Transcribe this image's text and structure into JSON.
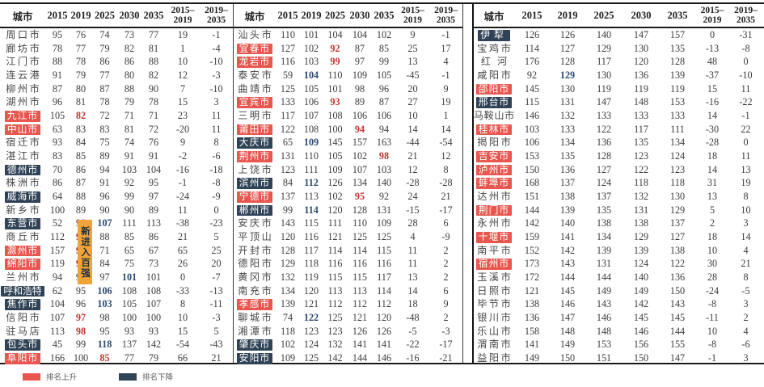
{
  "columns": {
    "city": "城市",
    "years": [
      "2015",
      "2019",
      "2025",
      "2030",
      "2035"
    ],
    "delta1": [
      "2015–",
      "2019"
    ],
    "delta2": [
      "2019–",
      "2035"
    ]
  },
  "legend": {
    "up_label": "排名上升",
    "down_label": "排名下降"
  },
  "annotation": {
    "label": "新进入百强"
  },
  "colors": {
    "up_bg": "#e8564e",
    "down_bg": "#2f4256",
    "up_text": "#c23730",
    "down_text": "#2c4b70",
    "annotation_bg": "#f0a437",
    "border": "#1b1b1b",
    "body_text": "#3c3c3c"
  },
  "tables": [
    {
      "rows": [
        {
          "city": "周口市",
          "hl": null,
          "v": [
            "95",
            "76",
            "74",
            "73",
            "77",
            "19",
            "-1"
          ]
        },
        {
          "city": "廊坊市",
          "hl": null,
          "v": [
            "78",
            "77",
            "79",
            "82",
            "81",
            "1",
            "-4"
          ]
        },
        {
          "city": "江门市",
          "hl": null,
          "v": [
            "88",
            "78",
            "86",
            "86",
            "88",
            "10",
            "-10"
          ]
        },
        {
          "city": "连云港",
          "hl": null,
          "v": [
            "91",
            "79",
            "77",
            "80",
            "82",
            "12",
            "-3"
          ]
        },
        {
          "city": "柳州市",
          "hl": null,
          "v": [
            "87",
            "80",
            "87",
            "88",
            "90",
            "7",
            "-10"
          ]
        },
        {
          "city": "湖州市",
          "hl": null,
          "v": [
            "96",
            "81",
            "78",
            "79",
            "78",
            "15",
            "3"
          ]
        },
        {
          "city": "九江市",
          "hl": "up",
          "v": [
            "105",
            "82",
            "72",
            "71",
            "71",
            "23",
            "11"
          ],
          "m": {
            "1": "up"
          }
        },
        {
          "city": "中山市",
          "hl": "up",
          "v": [
            "63",
            "83",
            "83",
            "81",
            "72",
            "-20",
            "11"
          ]
        },
        {
          "city": "宿迁市",
          "hl": null,
          "v": [
            "93",
            "84",
            "75",
            "74",
            "76",
            "9",
            "8"
          ]
        },
        {
          "city": "湛江市",
          "hl": null,
          "v": [
            "83",
            "85",
            "89",
            "91",
            "91",
            "-2",
            "-6"
          ]
        },
        {
          "city": "德州市",
          "hl": "down",
          "v": [
            "70",
            "86",
            "94",
            "103",
            "104",
            "-16",
            "-18"
          ]
        },
        {
          "city": "株洲市",
          "hl": null,
          "v": [
            "86",
            "87",
            "91",
            "92",
            "95",
            "-1",
            "-8"
          ]
        },
        {
          "city": "威海市",
          "hl": "down",
          "v": [
            "64",
            "88",
            "96",
            "99",
            "97",
            "-24",
            "-9"
          ]
        },
        {
          "city": "新乡市",
          "hl": null,
          "v": [
            "100",
            "89",
            "90",
            "90",
            "89",
            "11",
            "0"
          ]
        },
        {
          "city": "东营市",
          "hl": "down",
          "v": [
            "52",
            "90",
            "107",
            "111",
            "113",
            "-38",
            "-23"
          ],
          "m": {
            "2": "down"
          }
        },
        {
          "city": "商丘市",
          "hl": null,
          "v": [
            "112",
            "91",
            "88",
            "85",
            "86",
            "21",
            "5"
          ],
          "m": {
            "1": "up"
          }
        },
        {
          "city": "滁州市",
          "hl": "up",
          "v": [
            "157",
            "92",
            "71",
            "65",
            "67",
            "65",
            "25"
          ],
          "m": {
            "1": "up"
          }
        },
        {
          "city": "绵阳市",
          "hl": "up",
          "v": [
            "119",
            "93",
            "84",
            "75",
            "73",
            "26",
            "20"
          ],
          "m": {
            "1": "up"
          }
        },
        {
          "city": "兰州市",
          "hl": null,
          "v": [
            "94",
            "94",
            "97",
            "101",
            "101",
            "0",
            "-7"
          ],
          "m": {
            "3": "down"
          }
        },
        {
          "city": "呼和浩特",
          "hl": "down",
          "v": [
            "62",
            "95",
            "106",
            "108",
            "108",
            "-33",
            "-13"
          ],
          "m": {
            "2": "down"
          }
        },
        {
          "city": "焦作市",
          "hl": "down",
          "v": [
            "104",
            "96",
            "103",
            "105",
            "107",
            "8",
            "-11"
          ],
          "m": {
            "2": "down"
          }
        },
        {
          "city": "信阳市",
          "hl": null,
          "v": [
            "107",
            "97",
            "98",
            "100",
            "100",
            "10",
            "-3"
          ],
          "m": {
            "1": "up"
          }
        },
        {
          "city": "驻马店",
          "hl": null,
          "v": [
            "113",
            "98",
            "95",
            "93",
            "93",
            "15",
            "5"
          ],
          "m": {
            "1": "up"
          }
        },
        {
          "city": "包头市",
          "hl": "down",
          "v": [
            "45",
            "99",
            "118",
            "137",
            "142",
            "-54",
            "-43"
          ],
          "m": {
            "2": "down"
          }
        },
        {
          "city": "阜阳市",
          "hl": "up",
          "v": [
            "166",
            "100",
            "85",
            "77",
            "79",
            "66",
            "21"
          ],
          "m": {
            "2": "up"
          }
        }
      ]
    },
    {
      "rows": [
        {
          "city": "汕头市",
          "hl": null,
          "v": [
            "110",
            "101",
            "104",
            "104",
            "102",
            "9",
            "-1"
          ]
        },
        {
          "city": "宜春市",
          "hl": "up",
          "v": [
            "127",
            "102",
            "92",
            "87",
            "85",
            "25",
            "17"
          ],
          "m": {
            "2": "up"
          }
        },
        {
          "city": "龙岩市",
          "hl": "up",
          "v": [
            "116",
            "103",
            "99",
            "97",
            "99",
            "13",
            "4"
          ],
          "m": {
            "2": "up"
          }
        },
        {
          "city": "泰安市",
          "hl": null,
          "v": [
            "59",
            "104",
            "110",
            "109",
            "105",
            "-45",
            "-1"
          ],
          "m": {
            "1": "down"
          }
        },
        {
          "city": "曲靖市",
          "hl": null,
          "v": [
            "125",
            "105",
            "101",
            "98",
            "96",
            "20",
            "9"
          ]
        },
        {
          "city": "宜宾市",
          "hl": "up",
          "v": [
            "133",
            "106",
            "93",
            "89",
            "87",
            "27",
            "19"
          ],
          "m": {
            "2": "up"
          }
        },
        {
          "city": "三明市",
          "hl": null,
          "v": [
            "117",
            "107",
            "108",
            "106",
            "106",
            "10",
            "1"
          ]
        },
        {
          "city": "莆田市",
          "hl": "up",
          "v": [
            "122",
            "108",
            "100",
            "94",
            "94",
            "14",
            "14"
          ],
          "m": {
            "3": "up"
          }
        },
        {
          "city": "大庆市",
          "hl": "down",
          "v": [
            "65",
            "109",
            "145",
            "157",
            "163",
            "-44",
            "-54"
          ],
          "m": {
            "1": "down"
          }
        },
        {
          "city": "荆州市",
          "hl": "up",
          "v": [
            "131",
            "110",
            "105",
            "102",
            "98",
            "21",
            "12"
          ],
          "m": {
            "4": "up"
          }
        },
        {
          "city": "上饶市",
          "hl": null,
          "v": [
            "123",
            "111",
            "109",
            "107",
            "103",
            "12",
            "8"
          ]
        },
        {
          "city": "滨州市",
          "hl": "down",
          "v": [
            "84",
            "112",
            "126",
            "134",
            "140",
            "-28",
            "-28"
          ],
          "m": {
            "1": "down"
          }
        },
        {
          "city": "宁德市",
          "hl": "up",
          "v": [
            "137",
            "113",
            "102",
            "95",
            "92",
            "24",
            "21"
          ],
          "m": {
            "3": "up"
          }
        },
        {
          "city": "郴州市",
          "hl": "down",
          "v": [
            "99",
            "114",
            "120",
            "128",
            "131",
            "-15",
            "-17"
          ],
          "m": {
            "1": "down"
          }
        },
        {
          "city": "安庆市",
          "hl": null,
          "v": [
            "143",
            "115",
            "111",
            "110",
            "109",
            "28",
            "6"
          ]
        },
        {
          "city": "平顶山",
          "hl": null,
          "v": [
            "120",
            "116",
            "121",
            "125",
            "125",
            "4",
            "-9"
          ]
        },
        {
          "city": "开封市",
          "hl": null,
          "v": [
            "128",
            "117",
            "114",
            "114",
            "115",
            "11",
            "2"
          ]
        },
        {
          "city": "德阳市",
          "hl": null,
          "v": [
            "129",
            "118",
            "116",
            "116",
            "116",
            "11",
            "2"
          ]
        },
        {
          "city": "黄冈市",
          "hl": null,
          "v": [
            "132",
            "119",
            "115",
            "115",
            "117",
            "13",
            "2"
          ]
        },
        {
          "city": "南充市",
          "hl": null,
          "v": [
            "134",
            "120",
            "113",
            "113",
            "114",
            "14",
            "6"
          ]
        },
        {
          "city": "孝感市",
          "hl": "up",
          "v": [
            "139",
            "121",
            "112",
            "112",
            "112",
            "18",
            "9"
          ]
        },
        {
          "city": "聊城市",
          "hl": null,
          "v": [
            "74",
            "122",
            "125",
            "121",
            "120",
            "-48",
            "2"
          ],
          "m": {
            "1": "down"
          }
        },
        {
          "city": "湘潭市",
          "hl": null,
          "v": [
            "118",
            "123",
            "123",
            "126",
            "126",
            "-5",
            "-3"
          ]
        },
        {
          "city": "肇庆市",
          "hl": "down",
          "v": [
            "102",
            "124",
            "132",
            "141",
            "141",
            "-22",
            "-17"
          ]
        },
        {
          "city": "安阳市",
          "hl": "down",
          "v": [
            "109",
            "125",
            "142",
            "144",
            "146",
            "-16",
            "-21"
          ]
        }
      ]
    },
    {
      "rows": [
        {
          "city": "伊犁",
          "hl": "down",
          "v": [
            "126",
            "126",
            "140",
            "147",
            "157",
            "0",
            "-31"
          ]
        },
        {
          "city": "宝鸡市",
          "hl": null,
          "v": [
            "114",
            "127",
            "129",
            "130",
            "135",
            "-13",
            "-8"
          ]
        },
        {
          "city": "红河",
          "hl": null,
          "v": [
            "176",
            "128",
            "117",
            "120",
            "128",
            "48",
            "0"
          ]
        },
        {
          "city": "咸阳市",
          "hl": null,
          "v": [
            "92",
            "129",
            "130",
            "136",
            "139",
            "-37",
            "-10"
          ],
          "m": {
            "1": "down"
          }
        },
        {
          "city": "邵阳市",
          "hl": "up",
          "v": [
            "145",
            "130",
            "119",
            "119",
            "119",
            "15",
            "11"
          ]
        },
        {
          "city": "邢台市",
          "hl": "down",
          "v": [
            "115",
            "131",
            "147",
            "148",
            "153",
            "-16",
            "-22"
          ]
        },
        {
          "city": "马鞍山市",
          "hl": null,
          "v": [
            "146",
            "132",
            "133",
            "133",
            "133",
            "14",
            "-1"
          ]
        },
        {
          "city": "桂林市",
          "hl": "up",
          "v": [
            "103",
            "133",
            "122",
            "117",
            "111",
            "-30",
            "22"
          ]
        },
        {
          "city": "揭阳市",
          "hl": null,
          "v": [
            "106",
            "134",
            "136",
            "135",
            "134",
            "-28",
            "0"
          ]
        },
        {
          "city": "吉安市",
          "hl": "up",
          "v": [
            "153",
            "135",
            "128",
            "123",
            "124",
            "18",
            "11"
          ]
        },
        {
          "city": "泸州市",
          "hl": "up",
          "v": [
            "150",
            "136",
            "127",
            "122",
            "123",
            "14",
            "13"
          ]
        },
        {
          "city": "蚌埠市",
          "hl": "up",
          "v": [
            "168",
            "137",
            "124",
            "118",
            "118",
            "31",
            "19"
          ]
        },
        {
          "city": "达州市",
          "hl": null,
          "v": [
            "151",
            "138",
            "137",
            "132",
            "130",
            "13",
            "8"
          ]
        },
        {
          "city": "荆门市",
          "hl": "up",
          "v": [
            "144",
            "139",
            "135",
            "131",
            "129",
            "5",
            "10"
          ]
        },
        {
          "city": "永州市",
          "hl": null,
          "v": [
            "142",
            "140",
            "138",
            "138",
            "137",
            "2",
            "3"
          ]
        },
        {
          "city": "十堰市",
          "hl": "up",
          "v": [
            "159",
            "141",
            "134",
            "129",
            "127",
            "18",
            "14"
          ]
        },
        {
          "city": "南平市",
          "hl": null,
          "v": [
            "152",
            "142",
            "139",
            "139",
            "138",
            "10",
            "4"
          ]
        },
        {
          "city": "宿州市",
          "hl": "up",
          "v": [
            "173",
            "143",
            "131",
            "124",
            "122",
            "30",
            "21"
          ]
        },
        {
          "city": "玉溪市",
          "hl": null,
          "v": [
            "172",
            "144",
            "144",
            "140",
            "136",
            "28",
            "8"
          ]
        },
        {
          "city": "日照市",
          "hl": null,
          "v": [
            "121",
            "145",
            "149",
            "149",
            "150",
            "-24",
            "-5"
          ]
        },
        {
          "city": "毕节市",
          "hl": null,
          "v": [
            "138",
            "146",
            "143",
            "142",
            "143",
            "-8",
            "3"
          ]
        },
        {
          "city": "银川市",
          "hl": null,
          "v": [
            "136",
            "147",
            "146",
            "145",
            "145",
            "-11",
            "2"
          ]
        },
        {
          "city": "乐山市",
          "hl": null,
          "v": [
            "158",
            "148",
            "148",
            "146",
            "144",
            "10",
            "4"
          ]
        },
        {
          "city": "渭南市",
          "hl": null,
          "v": [
            "141",
            "149",
            "153",
            "156",
            "155",
            "-8",
            "-6"
          ]
        },
        {
          "city": "益阳市",
          "hl": null,
          "v": [
            "149",
            "150",
            "151",
            "150",
            "147",
            "-1",
            "3"
          ]
        }
      ]
    }
  ]
}
